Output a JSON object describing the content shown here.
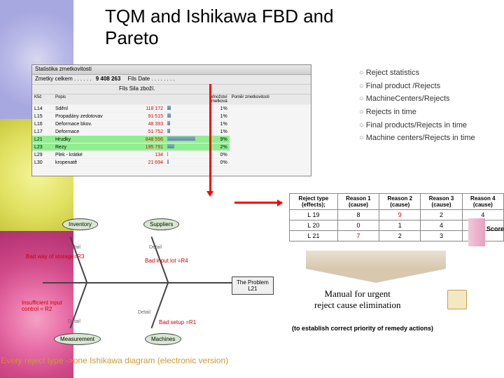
{
  "title_line1": "TQM and Ishikawa FBD and",
  "title_line2": "Pareto",
  "screenshot": {
    "window_title": "Statistika zmetkovitosti",
    "header_left": "Zmetky celkem . . . . . .",
    "header_value": "9 408 263",
    "header_mid": "Fils Date . . . . . . . .",
    "header_right": "Fils Sila zboží.",
    "cols": [
      "K5č",
      "Popis",
      "",
      "",
      "Množství zmetková",
      "Pomĕr zmetkovitosti"
    ],
    "rows": [
      {
        "id": "L14",
        "desc": "Sděnl",
        "val": "118 172",
        "pct": "1%",
        "bw": 5
      },
      {
        "id": "L15",
        "desc": "Propadány zedotovav",
        "val": "91 515",
        "pct": "1%",
        "bw": 5
      },
      {
        "id": "L16",
        "desc": "Deformace bkov.",
        "val": "48 393",
        "pct": "1%",
        "bw": 4
      },
      {
        "id": "L17",
        "desc": "Deformace",
        "val": "51 752",
        "pct": "1%",
        "bw": 4
      },
      {
        "id": "L21",
        "desc": "Hrudky",
        "val": "848 556",
        "pct": "9%",
        "bw": 40,
        "hl": true
      },
      {
        "id": "L23",
        "desc": "Rezy",
        "val": "195 791",
        "pct": "2%",
        "bw": 10,
        "hl": true
      },
      {
        "id": "L29",
        "desc": "Plek - krátké",
        "val": "134",
        "pct": "0%",
        "bw": 1
      },
      {
        "id": "L30",
        "desc": "kropenatě",
        "val": "21 694",
        "pct": "0%",
        "bw": 2
      }
    ]
  },
  "reports": {
    "items": [
      "Reject statistics",
      "Final product /Rejects",
      "MachineCenters/Rejects",
      "Rejects in time",
      "Final products/Rejects in time",
      "Machine centers/Rejects in time"
    ]
  },
  "ishikawa": {
    "nodes": {
      "inventory": "Inventory",
      "suppliers": "Suppliers",
      "measurement": "Measurement",
      "machines": "Machines",
      "problem_l1": "The Problem",
      "problem_l2": "L21"
    },
    "labels": {
      "r3": "Bad way of storage=R3",
      "r4": "Bad input lot =R4",
      "r2_l1": "Insufficient input",
      "r2_l2": "control = R2",
      "r1": "Bad setup =R1",
      "detail": "Detail"
    }
  },
  "data_table": {
    "headers": [
      "Reject type (effects);",
      "Reason 1 (cause)",
      "Reason 2 (cause)",
      "Reason 3 (cause)",
      "Reason 4 (cause)"
    ],
    "rows": [
      {
        "cells": [
          "L 19",
          "8",
          "9",
          "2",
          "4"
        ],
        "colors": [
          "#000",
          "#000",
          "#c00",
          "#000",
          "#000"
        ]
      },
      {
        "cells": [
          "L 20",
          "0",
          "1",
          "4",
          "6"
        ],
        "colors": [
          "#000",
          "#000",
          "#000",
          "#000",
          "#c00"
        ]
      },
      {
        "cells": [
          "L 21",
          "7",
          "2",
          "3",
          "5"
        ],
        "colors": [
          "#000",
          "#c00",
          "#000",
          "#000",
          "#000"
        ]
      }
    ]
  },
  "score_label": "Score",
  "manual_l1": "Manual for urgent",
  "manual_l2": "reject cause elimination",
  "priority_text": "(to establish correct priority of remedy actions)",
  "caption_prefix": "Eve",
  "caption_rest": "ry reject type ->one Ishikawa diagram (electronic version)"
}
